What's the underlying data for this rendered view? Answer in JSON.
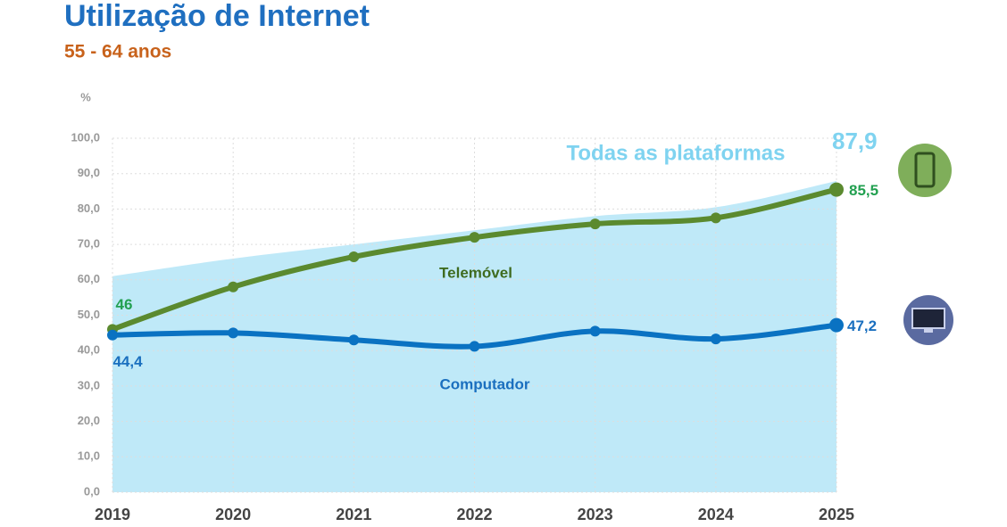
{
  "chart_data": {
    "type": "line",
    "title": "Utilização de Internet",
    "subtitle": "55 - 64 anos",
    "y_label": "%",
    "categories": [
      "2019",
      "2020",
      "2021",
      "2022",
      "2023",
      "2024",
      "2025"
    ],
    "series": [
      {
        "name": "Todas as plataformas",
        "kind": "area",
        "color": "#bfe9f8",
        "label_color": "#7fd3f0",
        "values": [
          61,
          66,
          70,
          74,
          78,
          80.5,
          87.9
        ],
        "value_labels": [
          null,
          null,
          null,
          null,
          null,
          null,
          "87,9"
        ]
      },
      {
        "name": "Telemóvel",
        "kind": "line",
        "color": "#5b8a2f",
        "label_color": "#22a050",
        "name_color": "#3f6b1f",
        "values": [
          46,
          58,
          66.5,
          72,
          75.8,
          77.5,
          85.5
        ],
        "value_labels": [
          null,
          null,
          null,
          null,
          null,
          null,
          "85,5"
        ]
      },
      {
        "name": "Computador",
        "kind": "line",
        "color": "#0a72c2",
        "label_color": "#1a6fbf",
        "name_color": "#1a6fbf",
        "values": [
          44.4,
          45,
          43,
          41.2,
          45.5,
          43.3,
          47.2
        ],
        "value_labels": [
          "44,4",
          null,
          null,
          null,
          null,
          null,
          "47,2"
        ]
      }
    ],
    "ylim": [
      0,
      100
    ],
    "yticks": [
      {
        "value": 0,
        "label": "0,0"
      },
      {
        "value": 10,
        "label": "10,0"
      },
      {
        "value": 20,
        "label": "20,0"
      },
      {
        "value": 30,
        "label": "30,0"
      },
      {
        "value": 40,
        "label": "40,0"
      },
      {
        "value": 50,
        "label": "50,0"
      },
      {
        "value": 60,
        "label": "60,0"
      },
      {
        "value": 70,
        "label": "70,0"
      },
      {
        "value": 80,
        "label": "80,0"
      },
      {
        "value": 90,
        "label": "90,0"
      },
      {
        "value": 100,
        "label": "100,0"
      }
    ],
    "grid": true
  }
}
